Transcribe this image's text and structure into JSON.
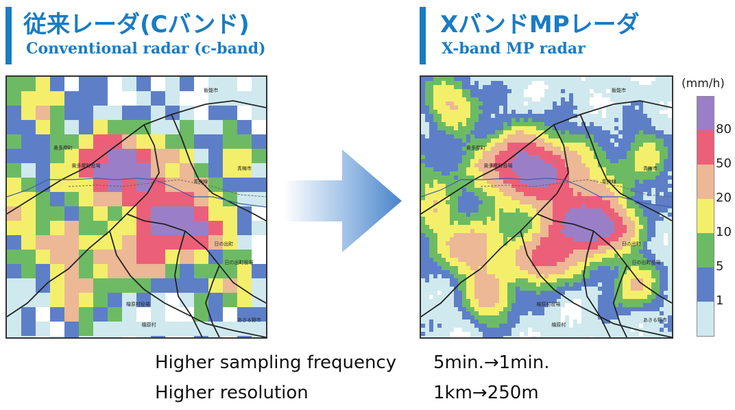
{
  "left": {
    "title_jp": "従来レーダ(Cバンド)",
    "title_en": "Conventional radar (c-band)",
    "place_labels": [
      "飯能市",
      "奥多摩町",
      "奥多摩町役場",
      "青梅線",
      "青梅市",
      "日の出町",
      "日の出町役場",
      "檜原村役場",
      "檜原村",
      "あきる野市"
    ]
  },
  "right": {
    "title_jp": "XバンドMPレーダ",
    "title_en": "X-band MP radar",
    "place_labels": [
      "飯能市",
      "奥多摩町",
      "奥多摩町役場",
      "青梅線",
      "青梅市",
      "日の出町",
      "日の出町役場",
      "檜原村役場",
      "檜原村",
      "あきる野市"
    ]
  },
  "legend": {
    "unit": "(mm/h)",
    "ticks": [
      "80",
      "50",
      "20",
      "10",
      "5",
      "1"
    ],
    "colors": [
      "#9a7fc6",
      "#ec5f78",
      "#ecb895",
      "#f4ef6a",
      "#6cbb64",
      "#5d7fc7",
      "#cfe9ee"
    ]
  },
  "info": {
    "row1_label": "Higher sampling frequency",
    "row1_value": "5min.→1min.",
    "row2_label": "Higher resolution",
    "row2_value": "1km→250m"
  },
  "arrow_icon": "right-arrow-icon"
}
